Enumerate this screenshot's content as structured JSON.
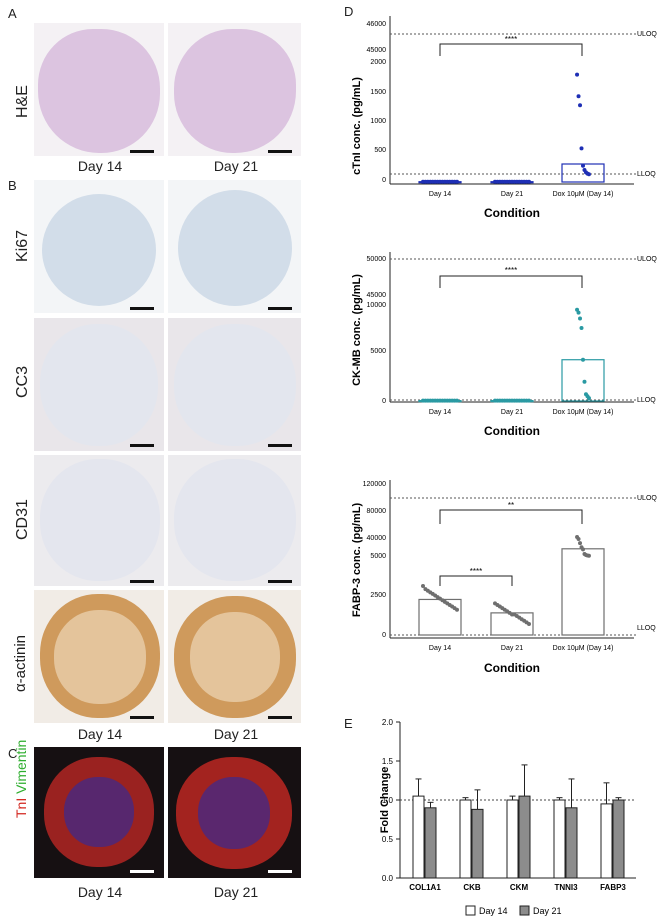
{
  "panels": {
    "A": {
      "letter": "A",
      "row_label": "H&E",
      "captions": [
        "Day 14",
        "Day 21"
      ]
    },
    "B": {
      "letter": "B",
      "row_labels": [
        "Ki67",
        "CC3",
        "CD31",
        "α-actinin"
      ],
      "captions": [
        "Day 14",
        "Day 21"
      ]
    },
    "C": {
      "letter": "C",
      "label_red": "TnI",
      "label_green": "Vimentin",
      "captions": [
        "Day 14",
        "Day 21"
      ]
    },
    "D": {
      "letter": "D"
    },
    "E": {
      "letter": "E"
    }
  },
  "colors": {
    "he": "#d9c2de",
    "ihc_bg": "#d8e1ea",
    "actinin": "#c98a45",
    "tnI": "#c8332b",
    "vim": "#3fbf3f",
    "nuc": "#2a3fb8",
    "d1": "#1e2fb5",
    "d2": "#2a9aa3",
    "d3": "#6f6f6f"
  },
  "chart_data": [
    {
      "type": "scatter",
      "ylabel": "cTnI conc. (pg/mL)",
      "xlabel": "Condition",
      "categories": [
        "Day 14",
        "Day 21",
        "Dox 10μM (Day 14)"
      ],
      "yticks": [
        "0",
        "500",
        "1000",
        "1500",
        "2000"
      ],
      "ytick_break": [
        "45000",
        "46000"
      ],
      "uloq_label": "ULOQ",
      "lloq_label": "LLOQ",
      "sig_label": "****",
      "bar_values": [
        5,
        5,
        300
      ],
      "points": [
        [
          5,
          5,
          5,
          5,
          5,
          5,
          5,
          5,
          5,
          5,
          5,
          5,
          5,
          5,
          5
        ],
        [
          5,
          5,
          5,
          5,
          5,
          5,
          5,
          5,
          5,
          5,
          5,
          5,
          5,
          5,
          5
        ],
        [
          1790,
          1430,
          1280,
          560,
          270,
          200,
          160,
          140,
          130
        ]
      ]
    },
    {
      "type": "scatter",
      "ylabel": "CK-MB conc. (pg/mL)",
      "xlabel": "Condition",
      "categories": [
        "Day 14",
        "Day 21",
        "Dox 10μM (Day 14)"
      ],
      "yticks": [
        "0",
        "5000",
        "10000"
      ],
      "ytick_break": [
        "45000",
        "50000"
      ],
      "uloq_label": "ULOQ",
      "lloq_label": "LLOQ",
      "sig_label": "****",
      "bar_values": [
        40,
        40,
        4300
      ],
      "points": [
        [
          40,
          40,
          40,
          40,
          40,
          40,
          40,
          40,
          40,
          40,
          40,
          40,
          40,
          40,
          40
        ],
        [
          40,
          40,
          40,
          40,
          40,
          40,
          40,
          40,
          40,
          40,
          40,
          40,
          40,
          40,
          40
        ],
        [
          9500,
          9200,
          8600,
          7600,
          4300,
          2000,
          700,
          500,
          300
        ]
      ]
    },
    {
      "type": "scatter",
      "ylabel": "FABP-3 conc. (pg/mL)",
      "xlabel": "Condition",
      "categories": [
        "Day 14",
        "Day 21",
        "Dox 10μM (Day 14)"
      ],
      "yticks": [
        "0",
        "2500",
        "5000"
      ],
      "yticks_upper": [
        "40000",
        "80000",
        "120000"
      ],
      "uloq_label": "ULOQ",
      "lloq_label": "LLOQ",
      "sig_label_1": "****",
      "sig_label_2": "**",
      "bar_values": [
        2250,
        1400,
        19000
      ],
      "points": [
        [
          3100,
          2900,
          2800,
          2700,
          2600,
          2500,
          2400,
          2300,
          2200,
          2100,
          2000,
          1900,
          1800,
          1700,
          1600
        ],
        [
          2000,
          1900,
          1800,
          1700,
          1600,
          1500,
          1400,
          1300,
          1300,
          1200,
          1100,
          1000,
          900,
          800,
          700
        ],
        [
          42000,
          38000,
          30000,
          22000,
          18000,
          9000,
          7000,
          6000,
          5500
        ]
      ]
    },
    {
      "type": "bar",
      "ylabel": "Fold Change",
      "categories": [
        "COL1A1",
        "CKB",
        "CKM",
        "TNNI3",
        "FABP3"
      ],
      "yticks": [
        "0.0",
        "0.5",
        "1.0",
        "1.5",
        "2.0"
      ],
      "ylim": [
        0,
        2
      ],
      "series": [
        {
          "name": "Day 14",
          "values": [
            1.05,
            1.0,
            1.0,
            1.0,
            0.95
          ],
          "errors": [
            0.22,
            0.03,
            0.05,
            0.03,
            0.27
          ]
        },
        {
          "name": "Day 21",
          "values": [
            0.9,
            0.88,
            1.05,
            0.9,
            1.0
          ],
          "errors": [
            0.07,
            0.25,
            0.4,
            0.37,
            0.03
          ]
        }
      ]
    }
  ]
}
